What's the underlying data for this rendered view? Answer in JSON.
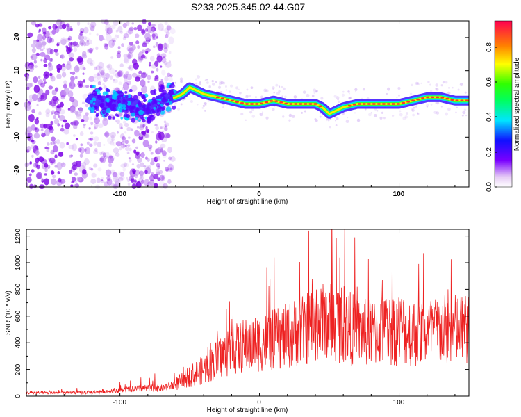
{
  "title": "S233.2025.345.02.44.G07",
  "colors": {
    "snr_line": "#ee2222",
    "signal_track": "#ff3030",
    "noise": "#8a2be2"
  },
  "chart_data": [
    {
      "type": "heatmap",
      "name": "spectrogram",
      "xlabel": "Height of straight line (km)",
      "ylabel": "Frequency (Hz)",
      "xlim": [
        -167,
        150
      ],
      "ylim": [
        -25,
        25
      ],
      "xticks": [
        -100,
        0,
        100
      ],
      "xtick_labels": [
        "-100",
        "0",
        "100"
      ],
      "yticks": [
        -20,
        -10,
        0,
        10,
        20
      ],
      "ytick_labels": [
        "-20",
        "-10",
        "0",
        "10",
        "20"
      ],
      "track": [
        [
          -120,
          1
        ],
        [
          -100,
          0
        ],
        [
          -80,
          -1
        ],
        [
          -70,
          1
        ],
        [
          -60,
          2
        ],
        [
          -55,
          3
        ],
        [
          -50,
          5
        ],
        [
          -45,
          4
        ],
        [
          -40,
          3
        ],
        [
          -30,
          2
        ],
        [
          -20,
          1
        ],
        [
          -10,
          0
        ],
        [
          0,
          0
        ],
        [
          10,
          1
        ],
        [
          20,
          0
        ],
        [
          30,
          0
        ],
        [
          40,
          0
        ],
        [
          45,
          -1
        ],
        [
          50,
          -3
        ],
        [
          55,
          -2
        ],
        [
          60,
          -1
        ],
        [
          70,
          0
        ],
        [
          80,
          0
        ],
        [
          90,
          0
        ],
        [
          100,
          0
        ],
        [
          110,
          1
        ],
        [
          120,
          2
        ],
        [
          130,
          2
        ],
        [
          140,
          1
        ],
        [
          150,
          1
        ]
      ],
      "colorbar": {
        "label": "Normalized spectral amplitude",
        "ticks": [
          0.0,
          0.2,
          0.4,
          0.6,
          0.8
        ],
        "tick_labels": [
          "0.0",
          "0.2",
          "0.4",
          "0.6",
          "0.8"
        ],
        "range": [
          0,
          0.95
        ]
      }
    },
    {
      "type": "line",
      "name": "snr",
      "xlabel": "Height of straight line (km)",
      "ylabel": "SNR (10 * v/v)",
      "xlim": [
        -167,
        150
      ],
      "ylim": [
        0,
        1250
      ],
      "xticks": [
        -100,
        0,
        100
      ],
      "xtick_labels": [
        "-100",
        "0",
        "100"
      ],
      "yticks": [
        0,
        200,
        400,
        600,
        800,
        1000,
        1200
      ],
      "ytick_labels": [
        "0",
        "200",
        "400",
        "600",
        "800",
        "1000",
        "1200"
      ],
      "envelope": [
        [
          -167,
          25
        ],
        [
          -140,
          25
        ],
        [
          -120,
          30
        ],
        [
          -100,
          45
        ],
        [
          -80,
          60
        ],
        [
          -70,
          60
        ],
        [
          -60,
          90
        ],
        [
          -50,
          150
        ],
        [
          -40,
          200
        ],
        [
          -30,
          280
        ],
        [
          -20,
          340
        ],
        [
          -10,
          380
        ],
        [
          0,
          400
        ],
        [
          10,
          420
        ],
        [
          20,
          450
        ],
        [
          30,
          500
        ],
        [
          40,
          540
        ],
        [
          50,
          560
        ],
        [
          60,
          540
        ],
        [
          70,
          480
        ],
        [
          80,
          470
        ],
        [
          90,
          490
        ],
        [
          100,
          510
        ],
        [
          110,
          480
        ],
        [
          120,
          480
        ],
        [
          130,
          490
        ],
        [
          140,
          500
        ],
        [
          150,
          500
        ]
      ],
      "spikes": [
        [
          -100,
          105
        ],
        [
          -85,
          140
        ],
        [
          -75,
          170
        ],
        [
          -35,
          400
        ],
        [
          -22,
          500
        ],
        [
          45,
          780
        ],
        [
          57,
          750
        ],
        [
          61,
          1250
        ],
        [
          70,
          820
        ],
        [
          78,
          1030
        ],
        [
          88,
          870
        ],
        [
          95,
          1050
        ],
        [
          103,
          700
        ],
        [
          114,
          990
        ],
        [
          135,
          800
        ]
      ]
    }
  ]
}
